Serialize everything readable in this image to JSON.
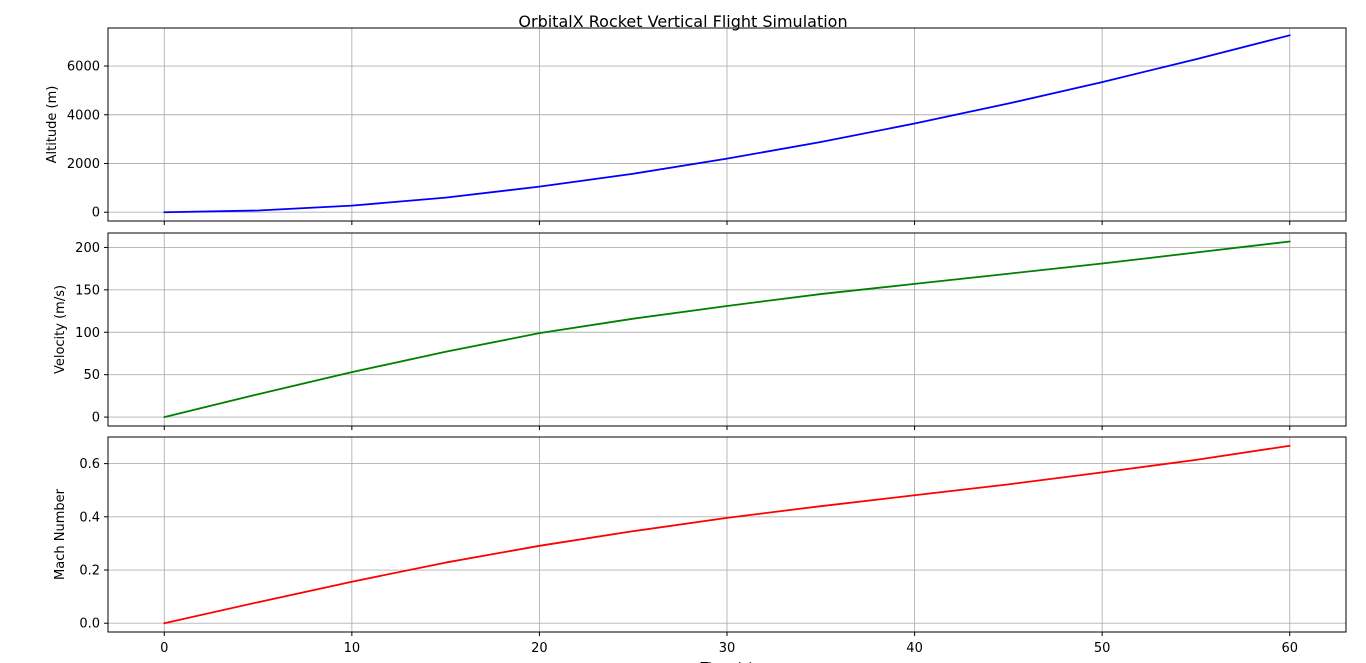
{
  "title": "OrbitalX Rocket Vertical Flight Simulation",
  "chart_data": [
    {
      "type": "line",
      "xlabel": "",
      "ylabel": "Altitude (m)",
      "xlim": [
        -3,
        63
      ],
      "ylim": [
        -360,
        7560
      ],
      "xticks": [
        0,
        10,
        20,
        30,
        40,
        50,
        60
      ],
      "yticks": [
        0,
        2000,
        4000,
        6000
      ],
      "show_xtick_labels": false,
      "grid": true,
      "color": "#0000ff",
      "series": [
        {
          "x": [
            0,
            5,
            10,
            15,
            20,
            25,
            30,
            35,
            40,
            45,
            50,
            55,
            60
          ],
          "values": [
            0,
            70,
            270,
            600,
            1050,
            1580,
            2200,
            2880,
            3640,
            4460,
            5340,
            6280,
            7260
          ]
        }
      ]
    },
    {
      "type": "line",
      "xlabel": "",
      "ylabel": "Velocity (m/s)",
      "xlim": [
        -3,
        63
      ],
      "ylim": [
        -10.5,
        217
      ],
      "xticks": [
        0,
        10,
        20,
        30,
        40,
        50,
        60
      ],
      "yticks": [
        0,
        50,
        100,
        150,
        200
      ],
      "show_xtick_labels": false,
      "grid": true,
      "color": "#008000",
      "series": [
        {
          "x": [
            0,
            5,
            10,
            15,
            20,
            25,
            30,
            35,
            40,
            45,
            50,
            55,
            60
          ],
          "values": [
            0,
            27,
            53,
            77,
            99,
            116,
            131,
            145,
            157,
            169,
            181,
            194,
            207
          ]
        }
      ]
    },
    {
      "type": "line",
      "xlabel": "Time (s)",
      "ylabel": "Mach Number",
      "xlim": [
        -3,
        63
      ],
      "ylim": [
        -0.033,
        0.7
      ],
      "xticks": [
        0,
        10,
        20,
        30,
        40,
        50,
        60
      ],
      "yticks": [
        0.0,
        0.2,
        0.4,
        0.6
      ],
      "show_xtick_labels": true,
      "grid": true,
      "color": "#ff0000",
      "series": [
        {
          "x": [
            0,
            5,
            10,
            15,
            20,
            25,
            30,
            35,
            40,
            45,
            50,
            55,
            60
          ],
          "values": [
            0,
            0.079,
            0.156,
            0.228,
            0.291,
            0.346,
            0.396,
            0.44,
            0.481,
            0.522,
            0.567,
            0.614,
            0.667
          ]
        }
      ]
    }
  ]
}
